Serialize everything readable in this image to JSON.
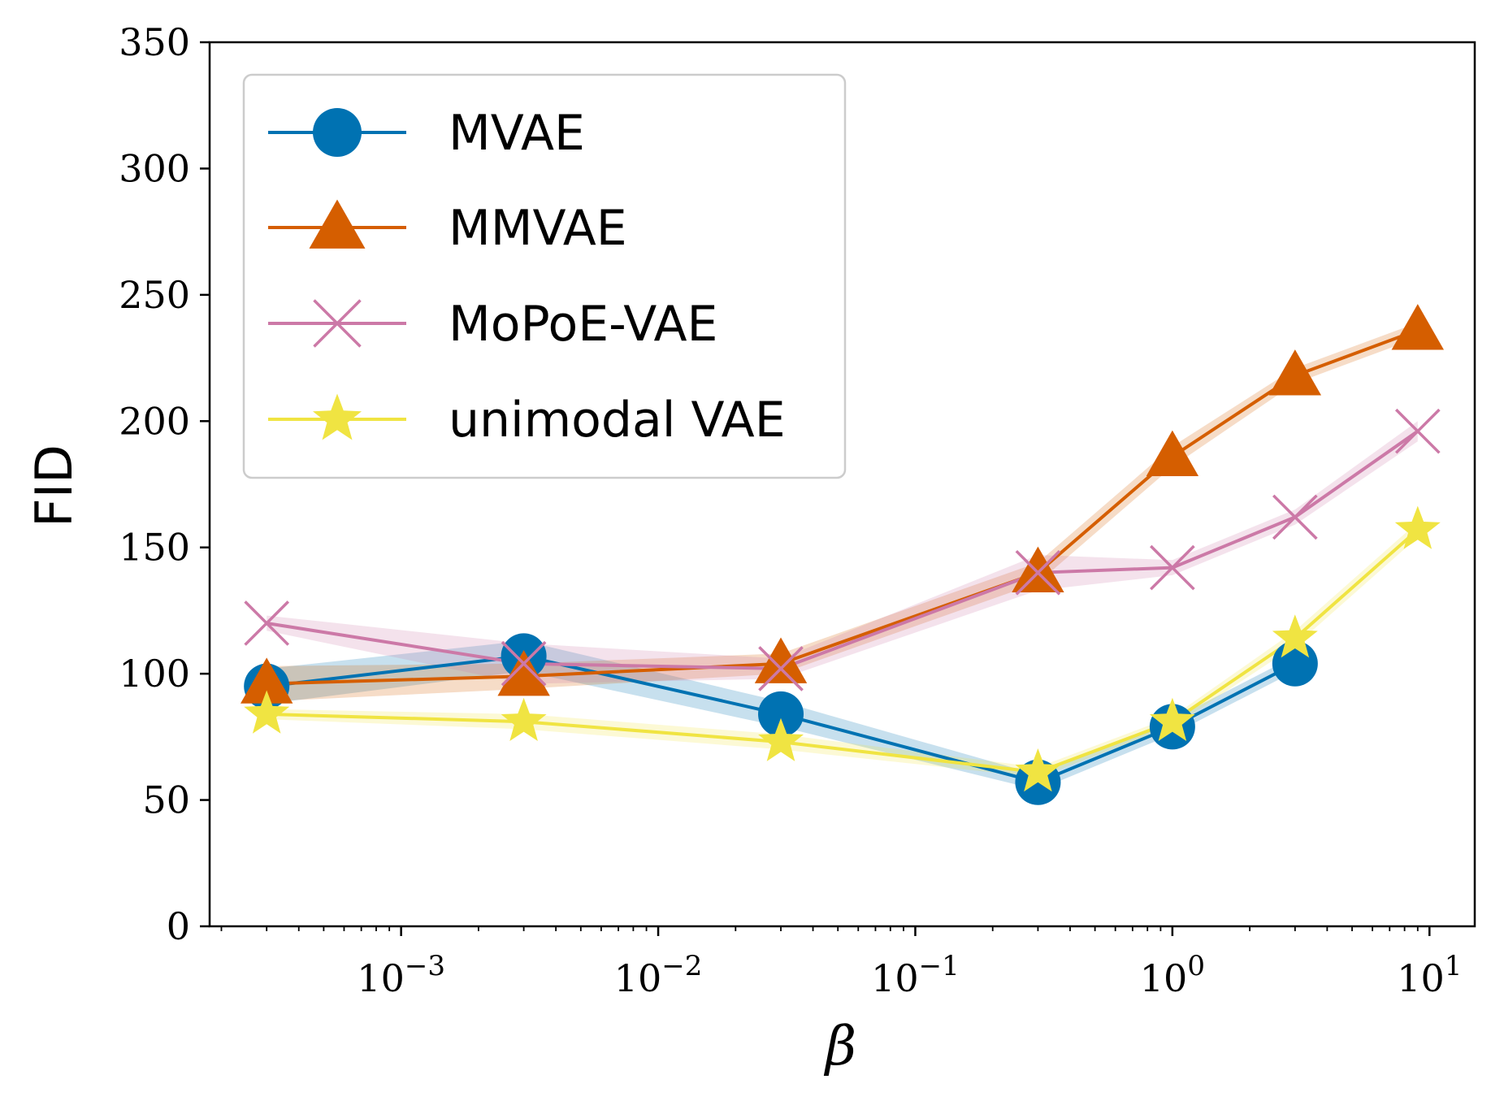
{
  "chart_data": {
    "type": "line",
    "title": "",
    "xlabel": "β",
    "ylabel": "FID",
    "xscale": "log",
    "xlim": [
      0.00018,
      15
    ],
    "ylim": [
      0,
      350
    ],
    "yticks": [
      0,
      50,
      100,
      150,
      200,
      250,
      300,
      350
    ],
    "xticks": [
      {
        "value": 0.001,
        "base": "10",
        "exp": "−3"
      },
      {
        "value": 0.01,
        "base": "10",
        "exp": "−2"
      },
      {
        "value": 0.1,
        "base": "10",
        "exp": "−1"
      },
      {
        "value": 1,
        "base": "10",
        "exp": "0"
      },
      {
        "value": 10,
        "base": "10",
        "exp": "1"
      }
    ],
    "x": [
      0.0003,
      0.003,
      0.03,
      0.3,
      1,
      3,
      9
    ],
    "legend_position": "top-left",
    "grid": false,
    "series": [
      {
        "name": "MVAE",
        "color": "#0072b2",
        "marker": "circle",
        "values": [
          95,
          107,
          84,
          57,
          79,
          104,
          null
        ],
        "band": [
          [
            88,
            102
          ],
          [
            101,
            113
          ],
          [
            79,
            89
          ],
          [
            54,
            60
          ],
          [
            76,
            82
          ],
          [
            101,
            107
          ],
          [
            null,
            null
          ]
        ]
      },
      {
        "name": "MMVAE",
        "color": "#d55e00",
        "marker": "triangle",
        "values": [
          96,
          99,
          104,
          140,
          186,
          218,
          236
        ],
        "band": [
          [
            89,
            103
          ],
          [
            94,
            104
          ],
          [
            100,
            108
          ],
          [
            136,
            144
          ],
          [
            182,
            190
          ],
          [
            215,
            221
          ],
          [
            233,
            239
          ]
        ]
      },
      {
        "name": "MoPoE-VAE",
        "color": "#cc79a7",
        "marker": "x",
        "values": [
          120,
          104,
          102,
          140,
          142,
          162,
          196
        ],
        "band": [
          [
            117,
            123
          ],
          [
            96,
            112
          ],
          [
            98,
            106
          ],
          [
            133,
            147
          ],
          [
            139,
            145
          ],
          [
            159,
            165
          ],
          [
            192,
            200
          ]
        ]
      },
      {
        "name": "unimodal VAE",
        "color": "#f0e442",
        "marker": "star",
        "values": [
          84,
          81,
          73,
          61,
          81,
          114,
          157
        ],
        "band": [
          [
            82,
            86
          ],
          [
            78,
            84
          ],
          [
            70,
            76
          ],
          [
            59,
            63
          ],
          [
            79,
            83
          ],
          [
            111,
            117
          ],
          [
            154,
            160
          ]
        ]
      }
    ]
  }
}
